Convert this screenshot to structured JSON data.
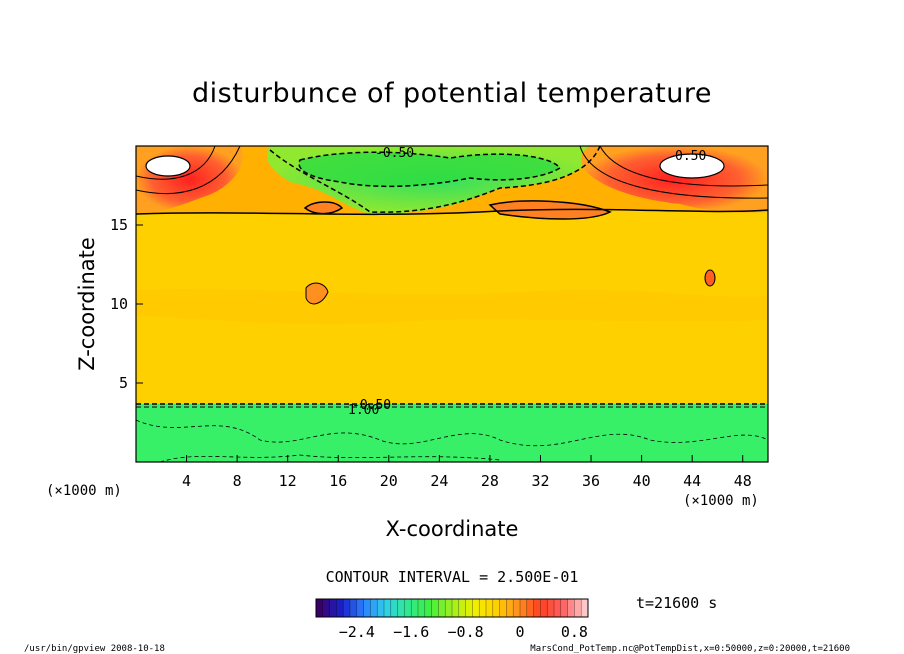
{
  "chart_data": {
    "type": "heatmap",
    "title": "disturbunce of potential temperature",
    "xlabel": "X-coordinate",
    "ylabel": "Z-coordinate",
    "x_unit": "(×1000 m)",
    "y_unit": "(×1000 m)",
    "xlim": [
      0,
      50
    ],
    "ylim": [
      0,
      20
    ],
    "x_ticks": [
      4,
      8,
      12,
      16,
      20,
      24,
      28,
      32,
      36,
      40,
      44,
      48
    ],
    "y_ticks": [
      5,
      10,
      15
    ],
    "contour_interval_text": "CONTOUR INTERVAL = 2.500E-01",
    "time_label": "t=21600 s",
    "contour_labels": [
      "0.50",
      "0.50",
      "-0.50",
      "-0.50",
      "1.00"
    ],
    "colorbar": {
      "range": [
        -3.0,
        1.0
      ],
      "tick_values": [
        -2.4,
        -1.6,
        -0.8,
        0,
        0.8
      ],
      "tick_labels": [
        "−2.4",
        "−1.6",
        "−0.8",
        "0",
        "0.8"
      ],
      "colors": [
        "#3a006a",
        "#1a20c8",
        "#2a80ff",
        "#30d0e8",
        "#30e890",
        "#40f040",
        "#a0f020",
        "#f0f000",
        "#ffd000",
        "#ff9020",
        "#ff4020",
        "#ff6060",
        "#ffc8c8"
      ]
    },
    "regions": [
      {
        "name": "lower layer",
        "x_range": [
          0,
          50
        ],
        "z_range": [
          0,
          3.7
        ],
        "value_approx": -0.6
      },
      {
        "name": "middle layer",
        "x_range": [
          0,
          50
        ],
        "z_range": [
          3.7,
          16.5
        ],
        "value_approx": 0.1
      },
      {
        "name": "upper negative anomaly",
        "x_center": 25,
        "z_center": 18,
        "value_approx": -0.6
      },
      {
        "name": "upper positive anomaly left",
        "x_center": 3,
        "z_center": 18.5,
        "value_approx": 1.0
      },
      {
        "name": "upper positive anomaly right",
        "x_center": 44,
        "z_center": 18.5,
        "value_approx": 1.0
      }
    ]
  },
  "footer": {
    "left": "/usr/bin/gpview   2008-10-18",
    "right": "MarsCond_PotTemp.nc@PotTempDist,x=0:50000,z=0:20000,t=21600"
  }
}
